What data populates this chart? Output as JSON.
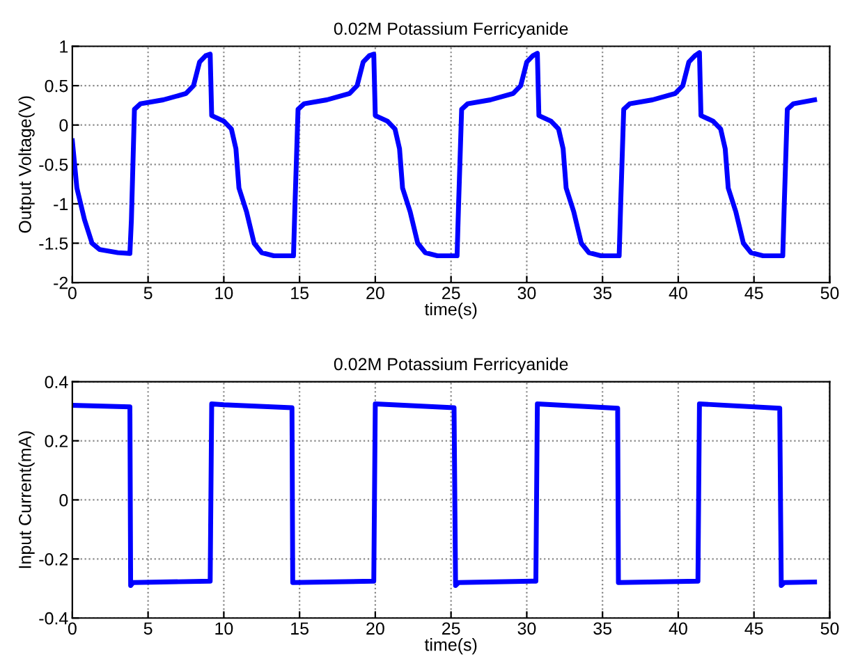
{
  "chart_data": [
    {
      "type": "line",
      "title": "0.02M Potassium Ferricyanide",
      "xlabel": "time(s)",
      "ylabel": "Output Voltage(V)",
      "xlim": [
        0,
        50
      ],
      "xticks": [
        0,
        5,
        10,
        15,
        20,
        25,
        30,
        35,
        40,
        45,
        50
      ],
      "ylim": [
        -2,
        1
      ],
      "yticks": [
        -2,
        -1.5,
        -1,
        -0.5,
        0,
        0.5,
        1
      ],
      "grid": true,
      "line_style": "solid",
      "series": [
        {
          "color": "#0000ff",
          "x": [
            0,
            0.3,
            0.8,
            1.3,
            1.8,
            3,
            3.8,
            3.9,
            4.1,
            4.5,
            6,
            7.5,
            8,
            8.4,
            8.8,
            9.1,
            9.2,
            10,
            10.5,
            10.8,
            11,
            11.5,
            12,
            12.5,
            13.3,
            14.6,
            14.7,
            14.9,
            15.3,
            16.8,
            18.3,
            18.8,
            19.2,
            19.6,
            19.9,
            20.0,
            20.8,
            21.3,
            21.6,
            21.8,
            22.3,
            22.8,
            23.3,
            24.1,
            25.4,
            25.5,
            25.7,
            26.1,
            27.6,
            29.1,
            29.6,
            30.0,
            30.4,
            30.7,
            30.8,
            31.6,
            32.1,
            32.4,
            32.6,
            33.1,
            33.6,
            34.1,
            34.9,
            36.1,
            36.2,
            36.4,
            36.8,
            38.3,
            39.8,
            40.3,
            40.7,
            41.1,
            41.4,
            41.5,
            42.3,
            42.8,
            43.1,
            43.3,
            43.8,
            44.3,
            44.8,
            45.6,
            46.9,
            47.0,
            47.2,
            47.6,
            49.0
          ],
          "values": [
            -0.2,
            -0.8,
            -1.2,
            -1.5,
            -1.58,
            -1.62,
            -1.63,
            -1.2,
            0.2,
            0.27,
            0.32,
            0.4,
            0.5,
            0.8,
            0.88,
            0.9,
            0.12,
            0.05,
            -0.05,
            -0.3,
            -0.8,
            -1.1,
            -1.5,
            -1.62,
            -1.66,
            -1.66,
            -1.0,
            0.2,
            0.27,
            0.32,
            0.4,
            0.5,
            0.8,
            0.88,
            0.9,
            0.12,
            0.05,
            -0.05,
            -0.3,
            -0.8,
            -1.1,
            -1.5,
            -1.62,
            -1.66,
            -1.66,
            -1.0,
            0.2,
            0.27,
            0.32,
            0.4,
            0.5,
            0.8,
            0.88,
            0.91,
            0.12,
            0.05,
            -0.05,
            -0.3,
            -0.8,
            -1.1,
            -1.5,
            -1.62,
            -1.66,
            -1.66,
            -1.0,
            0.2,
            0.27,
            0.32,
            0.4,
            0.5,
            0.8,
            0.88,
            0.92,
            0.12,
            0.05,
            -0.05,
            -0.3,
            -0.8,
            -1.1,
            -1.5,
            -1.62,
            -1.66,
            -1.66,
            -1.0,
            0.2,
            0.27,
            0.32
          ]
        }
      ]
    },
    {
      "type": "line",
      "title": "0.02M Potassium Ferricyanide",
      "xlabel": "time(s)",
      "ylabel": "Input Current(mA)",
      "xlim": [
        0,
        50
      ],
      "xticks": [
        0,
        5,
        10,
        15,
        20,
        25,
        30,
        35,
        40,
        45,
        50
      ],
      "ylim": [
        -0.4,
        0.4
      ],
      "yticks": [
        -0.4,
        -0.2,
        0,
        0.2,
        0.4
      ],
      "grid": true,
      "line_style": "solid",
      "series": [
        {
          "color": "#0000ff",
          "x": [
            0,
            3.8,
            3.85,
            4,
            9.1,
            9.2,
            10,
            14.5,
            14.55,
            19.9,
            20.0,
            25.2,
            25.3,
            25.5,
            30.6,
            30.7,
            36.0,
            36.05,
            41.3,
            41.4,
            46.7,
            46.8,
            47,
            49
          ],
          "values": [
            0.32,
            0.315,
            -0.29,
            -0.28,
            -0.275,
            0.325,
            0.322,
            0.312,
            -0.28,
            -0.275,
            0.325,
            0.312,
            -0.29,
            -0.28,
            -0.275,
            0.325,
            0.31,
            -0.28,
            -0.275,
            0.325,
            0.31,
            -0.29,
            -0.28,
            -0.278
          ]
        }
      ]
    }
  ]
}
